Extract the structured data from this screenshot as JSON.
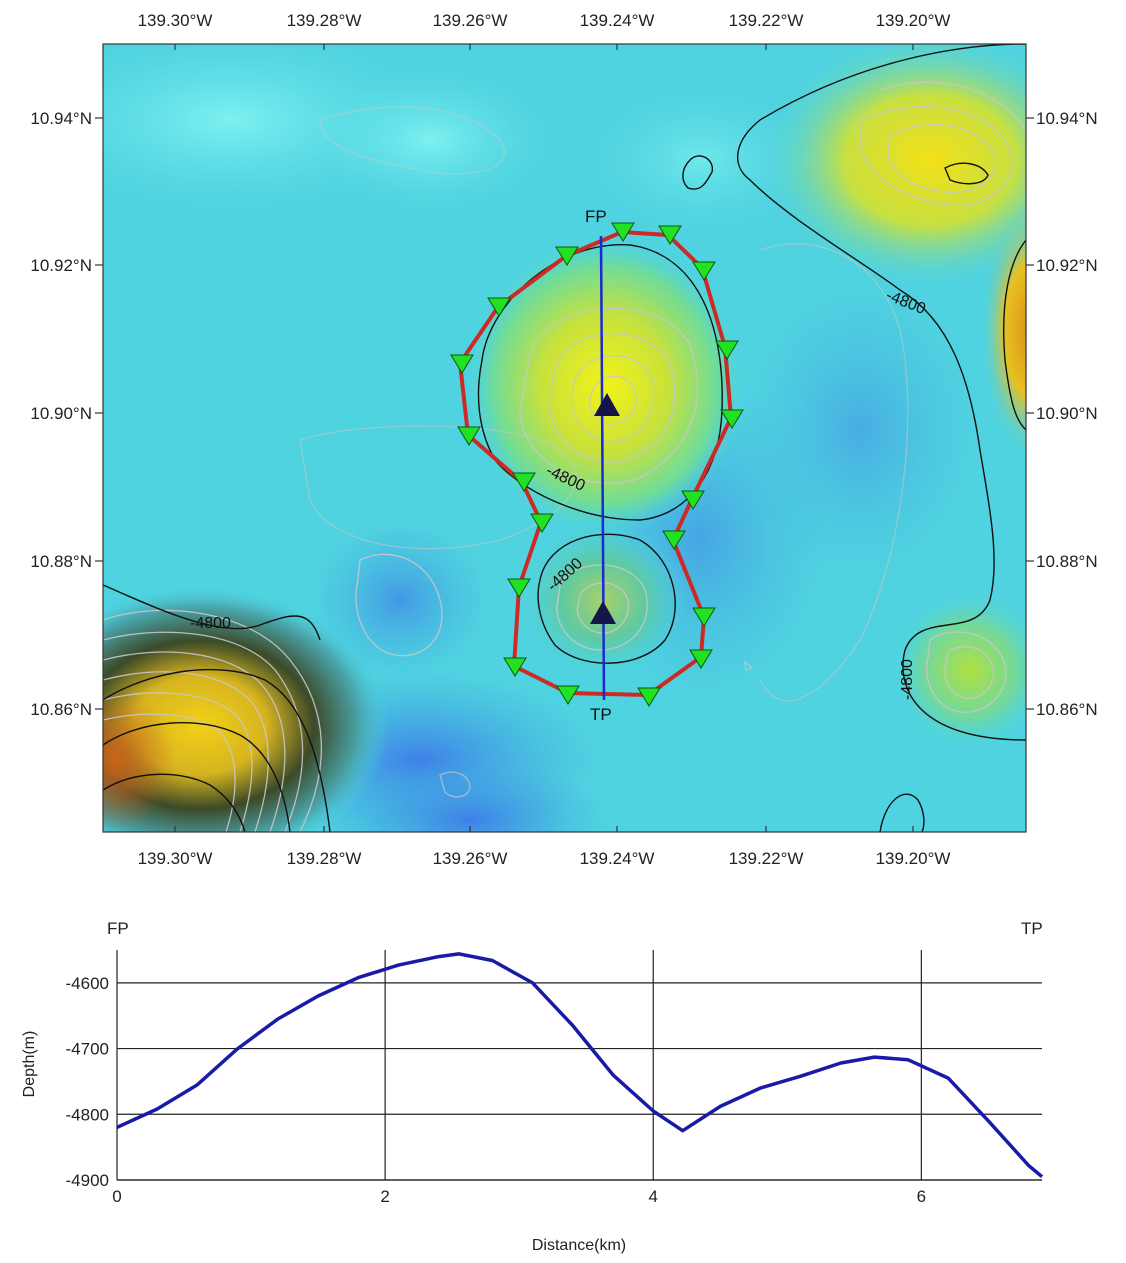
{
  "map": {
    "lon_ticks": [
      "139.30°W",
      "139.28°W",
      "139.26°W",
      "139.24°W",
      "139.22°W",
      "139.20°W"
    ],
    "lat_ticks": [
      "10.94°N",
      "10.92°N",
      "10.90°N",
      "10.88°N",
      "10.86°N"
    ],
    "contour_labels": [
      "-4800",
      "-4800",
      "-4800",
      "-4800",
      "-4800"
    ],
    "profile_start_label": "FP",
    "profile_end_label": "TP",
    "colors": {
      "ocean": "#4fd3e0",
      "deep": "#3f8fe8",
      "shallow": "#e4e428",
      "peak": "#d89a1a",
      "boundary": "#d0302a",
      "profile_line": "#1a2ad0",
      "marker": "#22e022",
      "summit": "#15154a"
    }
  },
  "chart_data": {
    "type": "line",
    "title": "",
    "xlabel": "Distance(km)",
    "ylabel": "Depth(m)",
    "xlim": [
      0,
      6.9
    ],
    "ylim": [
      -4900,
      -4550
    ],
    "x_ticks": [
      "0",
      "2",
      "4",
      "6"
    ],
    "y_ticks": [
      "-4600",
      "-4700",
      "-4800",
      "-4900"
    ],
    "left_label": "FP",
    "right_label": "TP",
    "grid": true,
    "series": [
      {
        "color": "#1a1aa8",
        "x": [
          0,
          0.3,
          0.6,
          0.9,
          1.2,
          1.5,
          1.8,
          2.1,
          2.4,
          2.55,
          2.8,
          3.1,
          3.4,
          3.7,
          4.0,
          4.22,
          4.5,
          4.8,
          5.1,
          5.4,
          5.65,
          5.9,
          6.2,
          6.5,
          6.8,
          6.9
        ],
        "y": [
          -4820,
          -4792,
          -4755,
          -4700,
          -4655,
          -4620,
          -4592,
          -4573,
          -4560,
          -4556,
          -4566,
          -4600,
          -4665,
          -4740,
          -4795,
          -4825,
          -4788,
          -4760,
          -4742,
          -4722,
          -4713,
          -4717,
          -4745,
          -4810,
          -4878,
          -4895
        ]
      }
    ]
  }
}
